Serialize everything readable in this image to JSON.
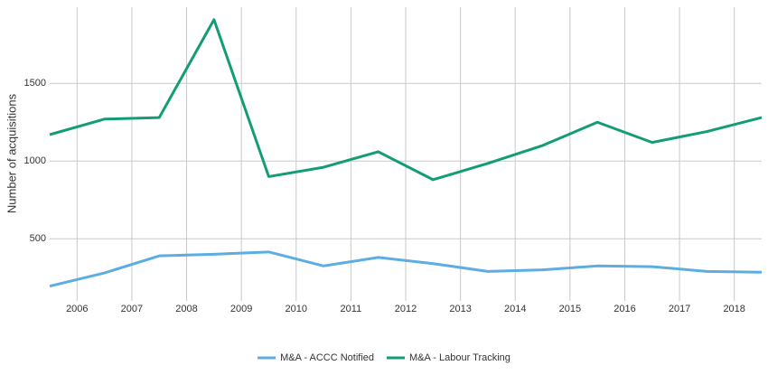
{
  "chart_data": {
    "type": "line",
    "y_label": "Number of acquisitions",
    "x": [
      2005.5,
      2006.5,
      2007.5,
      2008.5,
      2009.5,
      2010.5,
      2011.5,
      2012.5,
      2013.5,
      2014.5,
      2015.5,
      2016.5,
      2017.5,
      2018.5
    ],
    "series": [
      {
        "name": "M&A - ACCC Notified",
        "color": "#5dade2",
        "values": [
          195,
          280,
          390,
          400,
          415,
          325,
          380,
          340,
          290,
          300,
          325,
          320,
          290,
          285
        ]
      },
      {
        "name": "M&A - Labour Tracking",
        "color": "#139d76",
        "values": [
          1170,
          1270,
          1280,
          1910,
          900,
          960,
          1060,
          880,
          985,
          1100,
          1250,
          1120,
          1190,
          1280
        ]
      }
    ],
    "xlim": [
      2005.5,
      2018.5
    ],
    "xticks": [
      2006,
      2007,
      2008,
      2009,
      2010,
      2011,
      2012,
      2013,
      2014,
      2015,
      2016,
      2017,
      2018
    ],
    "ylim": [
      100,
      1990
    ],
    "yticks": [
      500,
      1000,
      1500
    ],
    "grid": true,
    "legend": "bottom"
  }
}
